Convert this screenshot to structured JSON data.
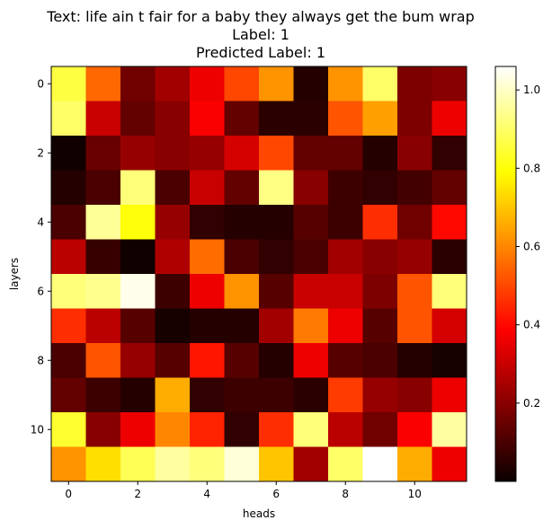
{
  "chart_data": {
    "type": "heatmap",
    "title_lines": [
      "Text: life ain t fair for a baby they always get the bum wrap",
      "Label: 1",
      "Predicted Label: 1"
    ],
    "xlabel": "heads",
    "ylabel": "layers",
    "x_ticks": [
      0,
      2,
      4,
      6,
      8,
      10
    ],
    "y_ticks": [
      0,
      2,
      4,
      6,
      8,
      10
    ],
    "colorbar_ticks": [
      0.2,
      0.4,
      0.6,
      0.8,
      1.0
    ],
    "colorbar_range": [
      0.0,
      1.06
    ],
    "colormap": "hot",
    "grid": false,
    "n_rows": 12,
    "n_cols": 12,
    "values": [
      [
        0.86,
        0.55,
        0.16,
        0.24,
        0.36,
        0.5,
        0.62,
        0.04,
        0.62,
        0.9,
        0.18,
        0.2
      ],
      [
        0.9,
        0.3,
        0.14,
        0.2,
        0.38,
        0.14,
        0.05,
        0.05,
        0.52,
        0.64,
        0.18,
        0.36
      ],
      [
        0.01,
        0.15,
        0.22,
        0.2,
        0.22,
        0.32,
        0.5,
        0.14,
        0.14,
        0.04,
        0.2,
        0.06
      ],
      [
        0.04,
        0.1,
        0.92,
        0.1,
        0.3,
        0.14,
        0.93,
        0.2,
        0.08,
        0.06,
        0.09,
        0.14
      ],
      [
        0.1,
        0.95,
        0.8,
        0.22,
        0.06,
        0.04,
        0.04,
        0.12,
        0.08,
        0.46,
        0.16,
        0.4
      ],
      [
        0.28,
        0.07,
        0.01,
        0.26,
        0.56,
        0.1,
        0.06,
        0.1,
        0.24,
        0.2,
        0.22,
        0.05
      ],
      [
        0.92,
        0.94,
        1.04,
        0.08,
        0.36,
        0.62,
        0.12,
        0.3,
        0.3,
        0.18,
        0.52,
        0.92
      ],
      [
        0.46,
        0.28,
        0.12,
        0.02,
        0.04,
        0.04,
        0.24,
        0.58,
        0.36,
        0.12,
        0.52,
        0.32
      ],
      [
        0.1,
        0.52,
        0.22,
        0.12,
        0.42,
        0.12,
        0.04,
        0.36,
        0.12,
        0.1,
        0.04,
        0.02
      ],
      [
        0.14,
        0.08,
        0.04,
        0.66,
        0.06,
        0.08,
        0.08,
        0.05,
        0.48,
        0.22,
        0.2,
        0.36
      ],
      [
        0.84,
        0.2,
        0.36,
        0.6,
        0.44,
        0.06,
        0.46,
        0.92,
        0.28,
        0.16,
        0.38,
        0.96
      ],
      [
        0.62,
        0.74,
        0.88,
        0.96,
        0.92,
        1.02,
        0.7,
        0.24,
        0.9,
        1.06,
        0.66,
        0.36
      ]
    ]
  }
}
